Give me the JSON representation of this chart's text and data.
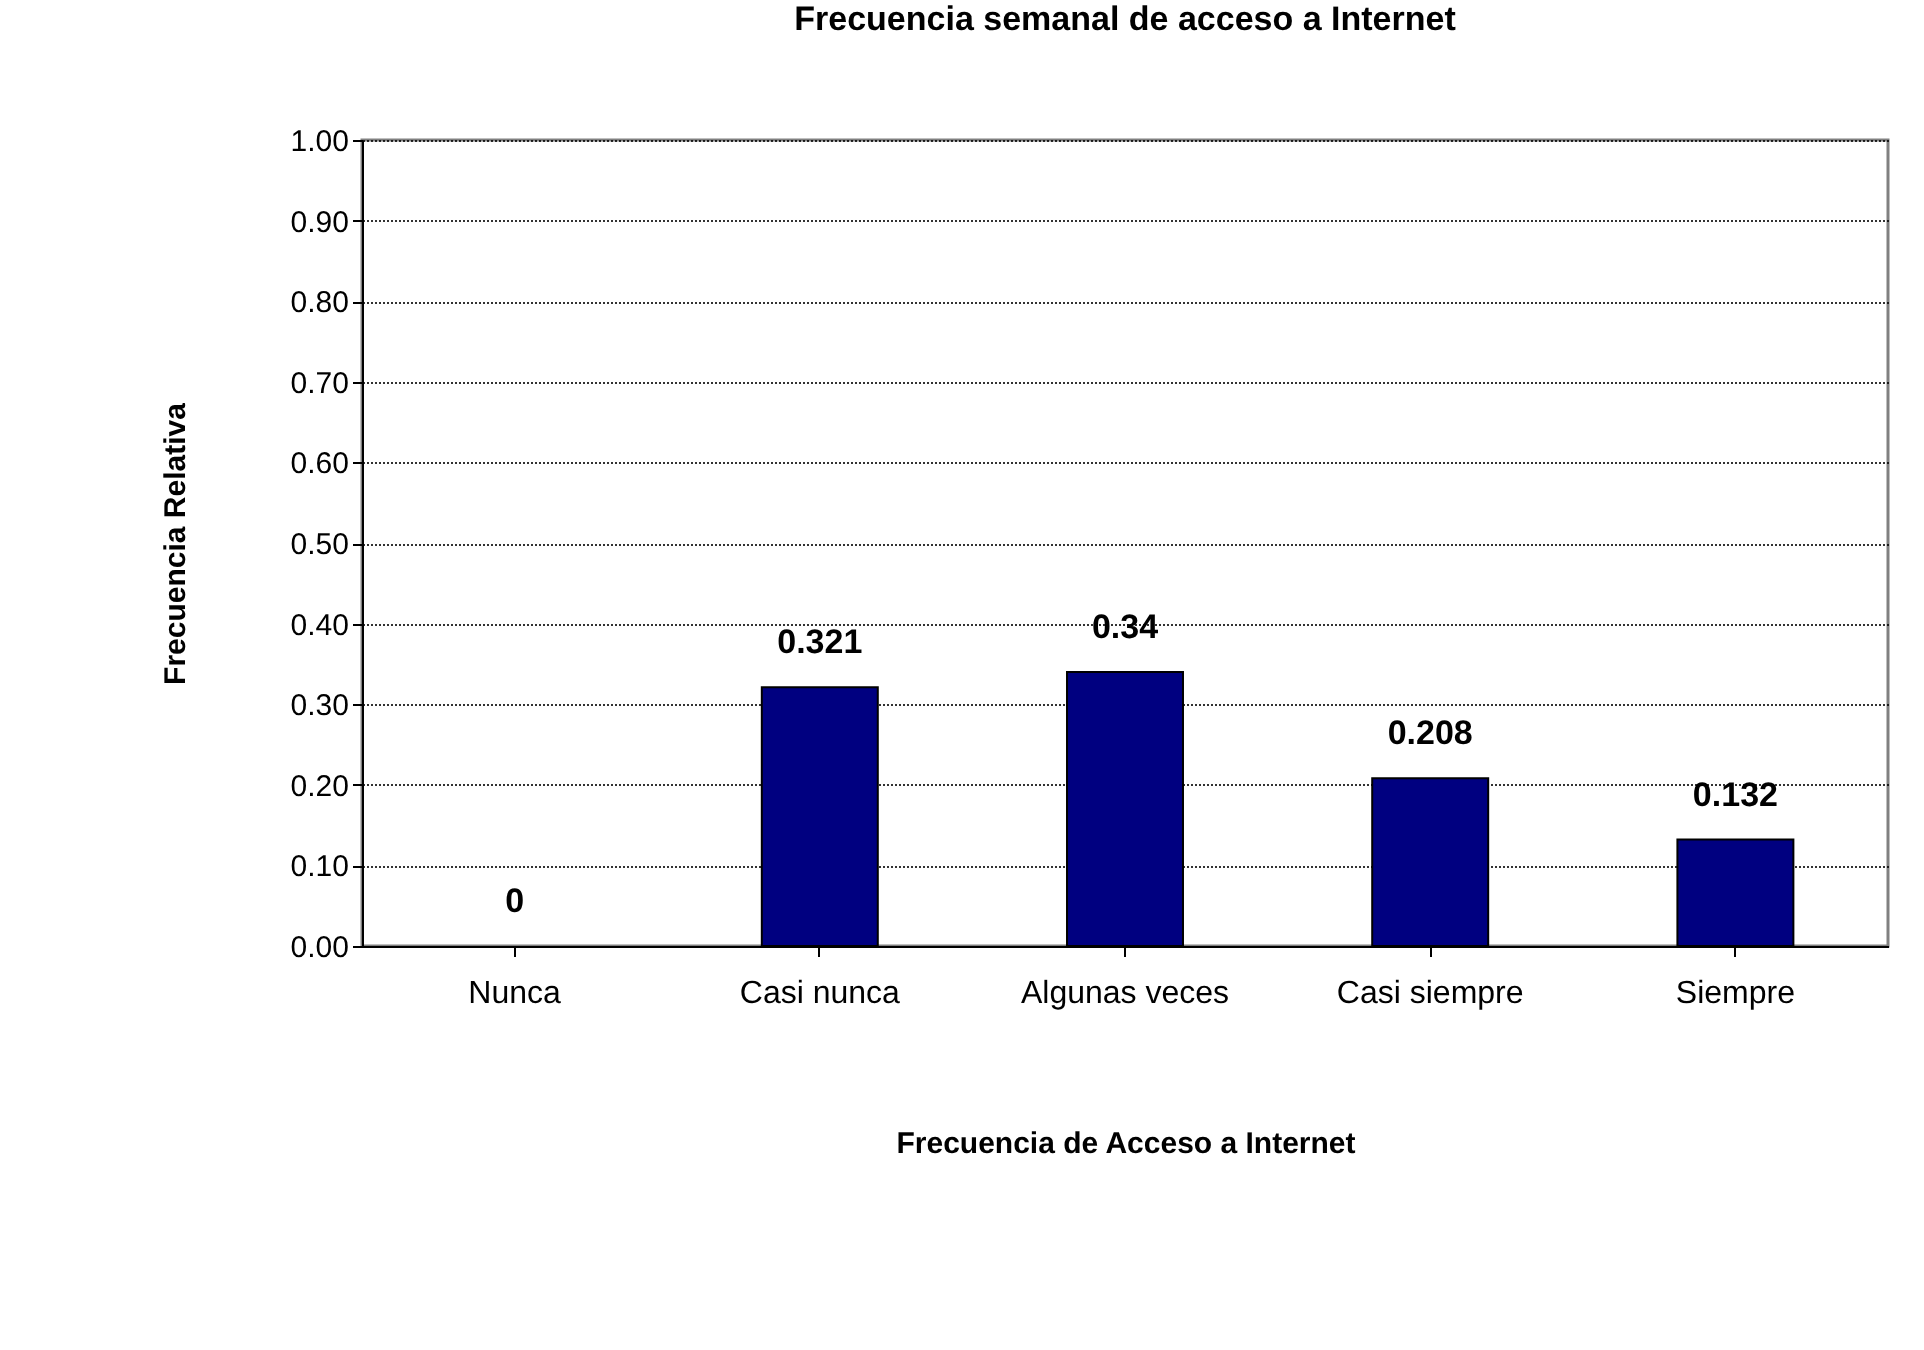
{
  "chart_data": {
    "type": "bar",
    "title": "Frecuencia semanal de acceso a Internet",
    "xlabel": "Frecuencia de Acceso a Internet",
    "ylabel": "Frecuencia Relativa",
    "categories": [
      "Nunca",
      "Casi nunca",
      "Algunas veces",
      "Casi siempre",
      "Siempre"
    ],
    "values": [
      0,
      0.321,
      0.34,
      0.208,
      0.132
    ],
    "color": "#000080",
    "ylim": [
      0,
      1
    ],
    "yticks": [
      {
        "value": 0,
        "label": "0.00"
      },
      {
        "value": 0.1,
        "label": "0.10"
      },
      {
        "value": 0.2,
        "label": "0.20"
      },
      {
        "value": 0.3,
        "label": "0.30"
      },
      {
        "value": 0.4,
        "label": "0.40"
      },
      {
        "value": 0.5,
        "label": "0.50"
      },
      {
        "value": 0.6,
        "label": "0.60"
      },
      {
        "value": 0.7,
        "label": "0.70"
      },
      {
        "value": 0.8,
        "label": "0.80"
      },
      {
        "value": 0.9,
        "label": "0.90"
      },
      {
        "value": 1,
        "label": "1.00"
      }
    ],
    "grid": "y",
    "data_labels": true
  }
}
